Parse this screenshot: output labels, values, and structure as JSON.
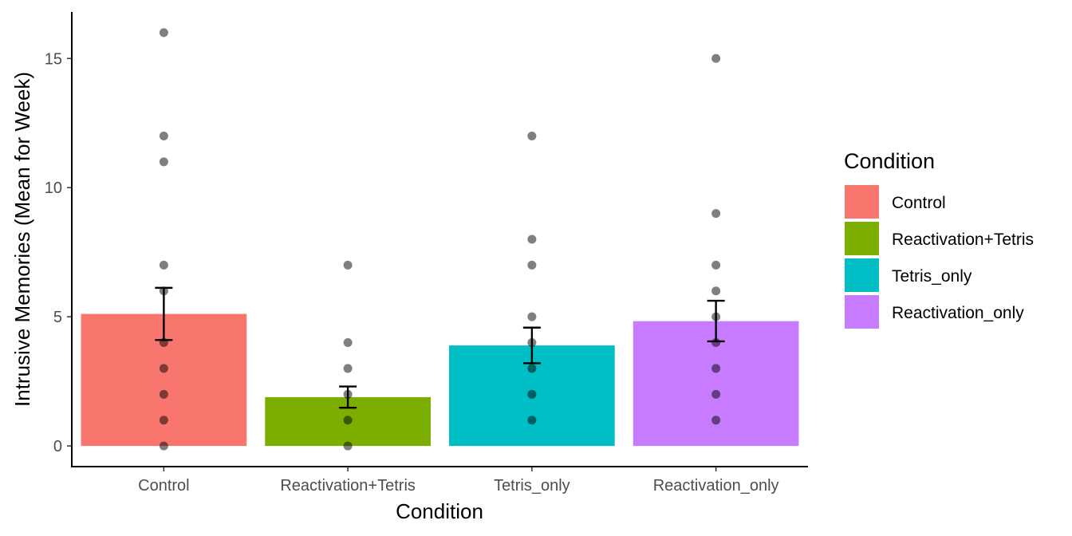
{
  "chart_data": {
    "type": "bar",
    "categories": [
      "Control",
      "Reactivation+Tetris",
      "Tetris_only",
      "Reactivation_only"
    ],
    "values": [
      5.11,
      1.89,
      3.89,
      4.83
    ],
    "error_low": [
      4.1,
      1.48,
      3.2,
      4.05
    ],
    "error_high": [
      6.12,
      2.3,
      4.58,
      5.62
    ],
    "points": [
      [
        0,
        1,
        2,
        3,
        4,
        6,
        7,
        11,
        12,
        16
      ],
      [
        0,
        1,
        2,
        3,
        4,
        7
      ],
      [
        1,
        2,
        3,
        4,
        5,
        7,
        8,
        12
      ],
      [
        1,
        2,
        3,
        4,
        5,
        6,
        7,
        9,
        15
      ]
    ],
    "colors": [
      "#F8766D",
      "#7CAE00",
      "#00BFC4",
      "#C77CFF"
    ],
    "xlabel": "Condition",
    "ylabel": "Intrusive Memories (Mean for Week)",
    "yticks": [
      0,
      5,
      10,
      15
    ],
    "ylim": [
      -0.8,
      16.8
    ],
    "legend": {
      "title": "Condition",
      "position": "right",
      "entries": [
        "Control",
        "Reactivation+Tetris",
        "Tetris_only",
        "Reactivation_only"
      ]
    },
    "grid": false
  }
}
